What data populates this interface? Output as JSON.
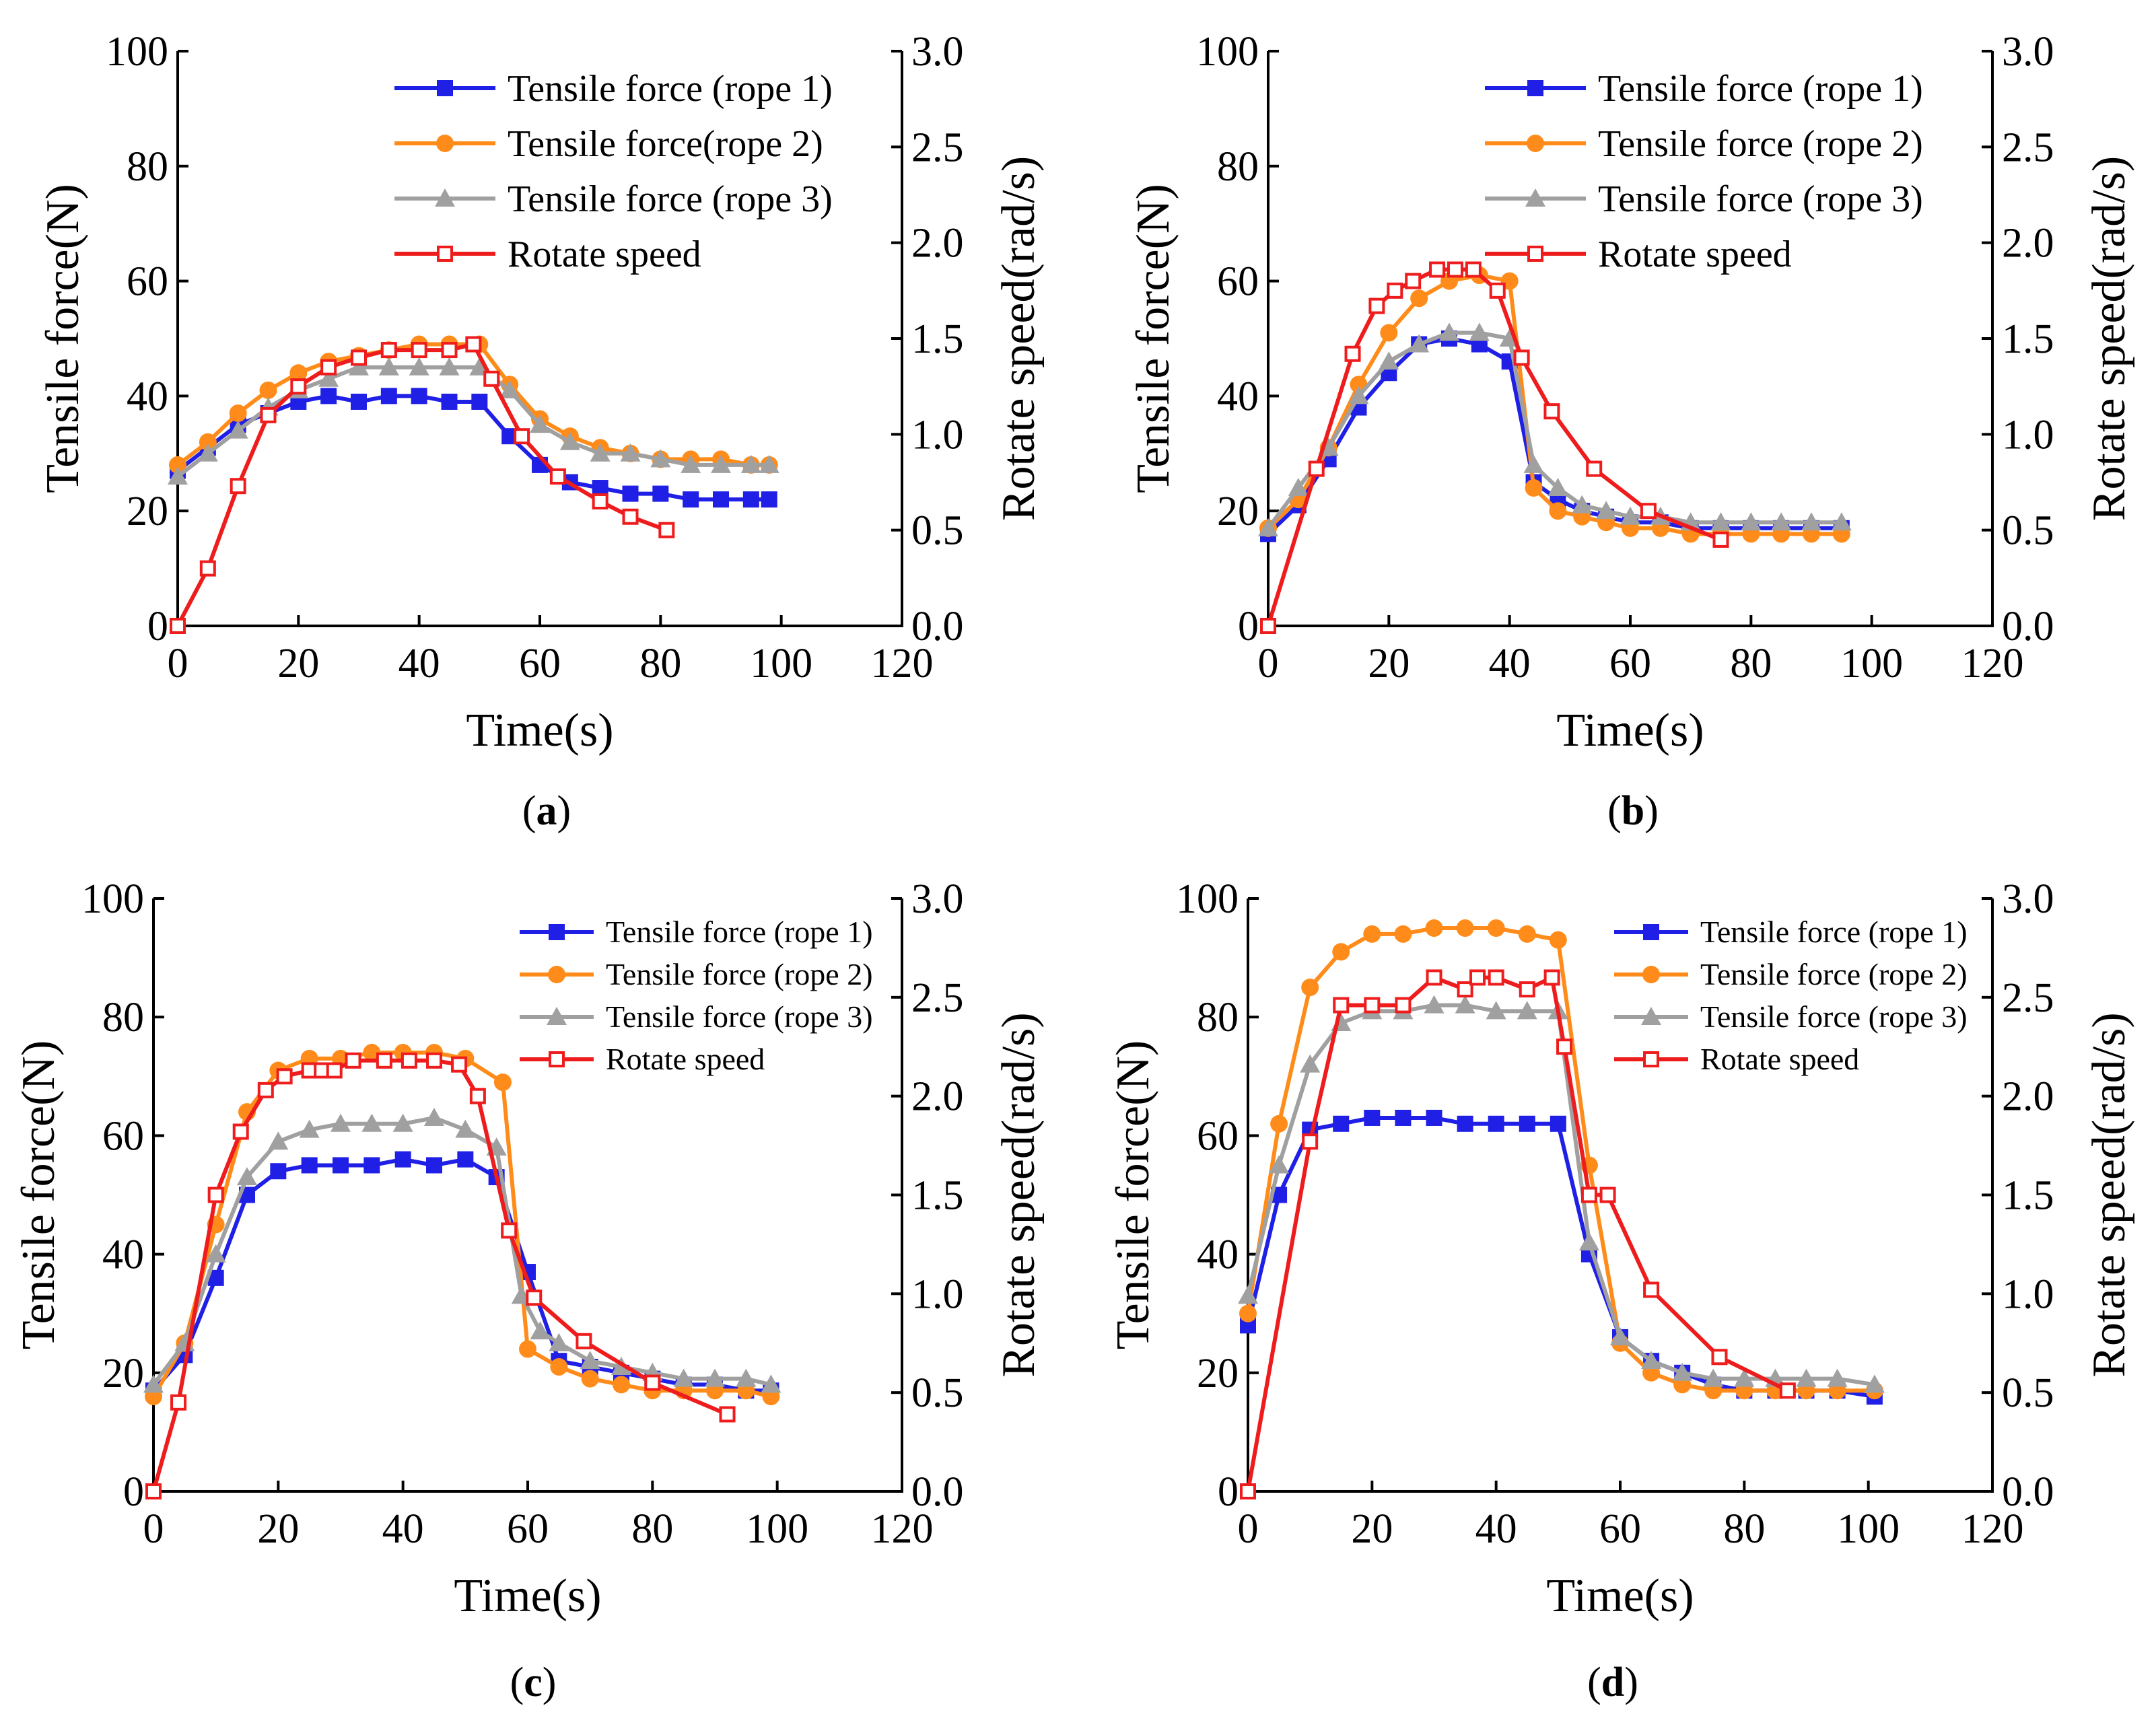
{
  "colors": {
    "rope1": "#1f1fe6",
    "rope2": "#ff8c1a",
    "rope3": "#a0a0a0",
    "speed": "#ee1c1c"
  },
  "chart_data": [
    {
      "type": "line",
      "panel_label": "(a)",
      "panel_letter": "a",
      "xlabel": "Time(s)",
      "ylabel": "Tensile force(N)",
      "y2label": "Rotate speed(rad/s)",
      "xlim": [
        0,
        120
      ],
      "ylim": [
        0,
        100
      ],
      "y2lim": [
        0.0,
        3.0
      ],
      "xticks": [
        "0",
        "20",
        "40",
        "60",
        "80",
        "100",
        "120"
      ],
      "yticks": [
        "0",
        "20",
        "40",
        "60",
        "80",
        "100"
      ],
      "y2ticks": [
        "0.0",
        "0.5",
        "1.0",
        "1.5",
        "2.0",
        "2.5",
        "3.0"
      ],
      "legend_style": "large",
      "legend_position": "top-right",
      "series": [
        {
          "name": "Tensile force (rope 1)",
          "marker": "square-filled",
          "color": "#1f1fe6",
          "axis": "left",
          "x": [
            0,
            5,
            10,
            15,
            20,
            25,
            30,
            35,
            40,
            45,
            50,
            55,
            60,
            65,
            70,
            75,
            80,
            85,
            90,
            95,
            98
          ],
          "y": [
            27,
            31,
            35,
            37,
            39,
            40,
            39,
            40,
            40,
            39,
            39,
            33,
            28,
            25,
            24,
            23,
            23,
            22,
            22,
            22,
            22
          ]
        },
        {
          "name": "Tensile force(rope 2)",
          "marker": "circle-filled",
          "color": "#ff8c1a",
          "axis": "left",
          "x": [
            0,
            5,
            10,
            15,
            20,
            25,
            30,
            35,
            40,
            45,
            50,
            55,
            60,
            65,
            70,
            75,
            80,
            85,
            90,
            95,
            98
          ],
          "y": [
            28,
            32,
            37,
            41,
            44,
            46,
            47,
            48,
            49,
            49,
            49,
            42,
            36,
            33,
            31,
            30,
            29,
            29,
            29,
            28,
            28
          ]
        },
        {
          "name": "Tensile force (rope 3)",
          "marker": "triangle-filled",
          "color": "#a0a0a0",
          "axis": "left",
          "x": [
            0,
            5,
            10,
            15,
            20,
            25,
            30,
            35,
            40,
            45,
            50,
            55,
            60,
            65,
            70,
            75,
            80,
            85,
            90,
            95,
            98
          ],
          "y": [
            26,
            30,
            34,
            38,
            41,
            43,
            45,
            45,
            45,
            45,
            45,
            41,
            35,
            32,
            30,
            30,
            29,
            28,
            28,
            28,
            28
          ]
        },
        {
          "name": "Rotate speed",
          "marker": "square-open",
          "color": "#ee1c1c",
          "axis": "right",
          "x": [
            0,
            5,
            10,
            15,
            20,
            25,
            30,
            35,
            40,
            45,
            49,
            52,
            57,
            63,
            70,
            75,
            81
          ],
          "y": [
            0.0,
            0.3,
            0.73,
            1.1,
            1.25,
            1.35,
            1.4,
            1.44,
            1.44,
            1.44,
            1.47,
            1.29,
            0.99,
            0.78,
            0.65,
            0.57,
            0.5
          ]
        }
      ]
    },
    {
      "type": "line",
      "panel_label": "(b)",
      "panel_letter": "b",
      "xlabel": "Time(s)",
      "ylabel": "Tensile force(N)",
      "y2label": "Rotate speed(rad/s)",
      "xlim": [
        0,
        120
      ],
      "ylim": [
        0,
        100
      ],
      "y2lim": [
        0.0,
        3.0
      ],
      "xticks": [
        "0",
        "20",
        "40",
        "60",
        "80",
        "100",
        "120"
      ],
      "yticks": [
        "0",
        "20",
        "40",
        "60",
        "80",
        "100"
      ],
      "y2ticks": [
        "0.0",
        "0.5",
        "1.0",
        "1.5",
        "2.0",
        "2.5",
        "3.0"
      ],
      "legend_style": "large",
      "legend_position": "top-right",
      "series": [
        {
          "name": "Tensile force (rope 1)",
          "marker": "square-filled",
          "color": "#1f1fe6",
          "axis": "left",
          "x": [
            0,
            5,
            10,
            15,
            20,
            25,
            30,
            35,
            40,
            44,
            48,
            52,
            56,
            60,
            65,
            70,
            75,
            80,
            85,
            90,
            95
          ],
          "y": [
            16,
            21,
            29,
            38,
            44,
            49,
            50,
            49,
            46,
            25,
            22,
            20,
            19,
            18,
            18,
            17,
            17,
            17,
            17,
            17,
            17
          ]
        },
        {
          "name": "Tensile force (rope 2)",
          "marker": "circle-filled",
          "color": "#ff8c1a",
          "axis": "left",
          "x": [
            0,
            5,
            10,
            15,
            20,
            25,
            30,
            35,
            40,
            44,
            48,
            52,
            56,
            60,
            65,
            70,
            75,
            80,
            85,
            90,
            95
          ],
          "y": [
            17,
            22,
            31,
            42,
            51,
            57,
            60,
            61,
            60,
            24,
            20,
            19,
            18,
            17,
            17,
            16,
            16,
            16,
            16,
            16,
            16
          ]
        },
        {
          "name": "Tensile force (rope 3)",
          "marker": "triangle-filled",
          "color": "#a0a0a0",
          "axis": "left",
          "x": [
            0,
            5,
            10,
            15,
            20,
            25,
            30,
            35,
            40,
            44,
            48,
            52,
            56,
            60,
            65,
            70,
            75,
            80,
            85,
            90,
            95
          ],
          "y": [
            17,
            24,
            31,
            40,
            46,
            49,
            51,
            51,
            50,
            28,
            24,
            21,
            20,
            19,
            19,
            18,
            18,
            18,
            18,
            18,
            18
          ]
        },
        {
          "name": "Rotate speed",
          "marker": "square-open",
          "color": "#ee1c1c",
          "axis": "right",
          "x": [
            0,
            8,
            14,
            18,
            21,
            24,
            28,
            31,
            34,
            38,
            42,
            47,
            54,
            63,
            75
          ],
          "y": [
            0.0,
            0.82,
            1.42,
            1.67,
            1.75,
            1.8,
            1.86,
            1.86,
            1.86,
            1.75,
            1.4,
            1.12,
            0.82,
            0.6,
            0.45
          ]
        }
      ]
    },
    {
      "type": "line",
      "panel_label": "(c)",
      "panel_letter": "c",
      "xlabel": "Time(s)",
      "ylabel": "Tensile force(N)",
      "y2label": "Rotate speed(rad/s)",
      "xlim": [
        0,
        120
      ],
      "ylim": [
        0,
        100
      ],
      "y2lim": [
        0.0,
        3.0
      ],
      "xticks": [
        "0",
        "20",
        "40",
        "60",
        "80",
        "100",
        "120"
      ],
      "yticks": [
        "0",
        "20",
        "40",
        "60",
        "80",
        "100"
      ],
      "y2ticks": [
        "0.0",
        "0.5",
        "1.0",
        "1.5",
        "2.0",
        "2.5",
        "3.0"
      ],
      "legend_style": "small",
      "legend_position": "top-right",
      "series": [
        {
          "name": "Tensile force (rope 1)",
          "marker": "square-filled",
          "color": "#1f1fe6",
          "axis": "left",
          "x": [
            0,
            5,
            10,
            15,
            20,
            25,
            30,
            35,
            40,
            45,
            50,
            55,
            60,
            65,
            70,
            75,
            80,
            85,
            90,
            95,
            99
          ],
          "y": [
            17,
            23,
            36,
            50,
            54,
            55,
            55,
            55,
            56,
            55,
            56,
            53,
            37,
            22,
            21,
            20,
            19,
            18,
            18,
            17,
            17
          ]
        },
        {
          "name": "Tensile force (rope 2)",
          "marker": "circle-filled",
          "color": "#ff8c1a",
          "axis": "left",
          "x": [
            0,
            5,
            10,
            15,
            20,
            25,
            30,
            35,
            40,
            45,
            50,
            56,
            60,
            65,
            70,
            75,
            80,
            85,
            90,
            95,
            99
          ],
          "y": [
            16,
            25,
            45,
            64,
            71,
            73,
            73,
            74,
            74,
            74,
            73,
            69,
            24,
            21,
            19,
            18,
            17,
            17,
            17,
            17,
            16
          ]
        },
        {
          "name": "Tensile force (rope 3)",
          "marker": "triangle-filled",
          "color": "#a0a0a0",
          "axis": "left",
          "x": [
            0,
            5,
            10,
            15,
            20,
            25,
            30,
            35,
            40,
            45,
            50,
            55,
            59,
            62,
            65,
            70,
            75,
            80,
            85,
            90,
            95,
            99
          ],
          "y": [
            18,
            25,
            40,
            53,
            59,
            61,
            62,
            62,
            62,
            63,
            61,
            58,
            33,
            27,
            25,
            22,
            21,
            20,
            19,
            19,
            19,
            18
          ]
        },
        {
          "name": "Rotate speed",
          "marker": "square-open",
          "color": "#ee1c1c",
          "axis": "right",
          "x": [
            0,
            4,
            10,
            14,
            18,
            21,
            25,
            27,
            29,
            32,
            37,
            41,
            45,
            49,
            52,
            57,
            61,
            69,
            80,
            92
          ],
          "y": [
            0.0,
            0.45,
            1.5,
            1.82,
            2.03,
            2.1,
            2.13,
            2.13,
            2.13,
            2.18,
            2.18,
            2.18,
            2.18,
            2.16,
            2.0,
            1.32,
            0.98,
            0.76,
            0.55,
            0.39
          ]
        }
      ]
    },
    {
      "type": "line",
      "panel_label": "(d)",
      "panel_letter": "d",
      "xlabel": "Time(s)",
      "ylabel": "Tensile force(N)",
      "y2label": "Rotate speed(rad/s)",
      "xlim": [
        0,
        120
      ],
      "ylim": [
        0,
        100
      ],
      "y2lim": [
        0.0,
        3.0
      ],
      "xticks": [
        "0",
        "20",
        "40",
        "60",
        "80",
        "100",
        "120"
      ],
      "yticks": [
        "0",
        "20",
        "40",
        "60",
        "80",
        "100"
      ],
      "y2ticks": [
        "0.0",
        "0.5",
        "1.0",
        "1.5",
        "2.0",
        "2.5",
        "3.0"
      ],
      "legend_style": "small",
      "legend_position": "top-right",
      "series": [
        {
          "name": "Tensile force (rope 1)",
          "marker": "square-filled",
          "color": "#1f1fe6",
          "axis": "left",
          "x": [
            0,
            5,
            10,
            15,
            20,
            25,
            30,
            35,
            40,
            45,
            50,
            55,
            60,
            65,
            70,
            75,
            80,
            85,
            90,
            95,
            101
          ],
          "y": [
            28,
            50,
            61,
            62,
            63,
            63,
            63,
            62,
            62,
            62,
            62,
            40,
            26,
            22,
            20,
            18,
            17,
            17,
            17,
            17,
            16
          ]
        },
        {
          "name": "Tensile force (rope 2)",
          "marker": "circle-filled",
          "color": "#ff8c1a",
          "axis": "left",
          "x": [
            0,
            5,
            10,
            15,
            20,
            25,
            30,
            35,
            40,
            45,
            50,
            55,
            60,
            65,
            70,
            75,
            80,
            85,
            90,
            95,
            101
          ],
          "y": [
            30,
            62,
            85,
            91,
            94,
            94,
            95,
            95,
            95,
            94,
            93,
            55,
            25,
            20,
            18,
            17,
            17,
            17,
            17,
            17,
            17
          ]
        },
        {
          "name": "Tensile force (rope 3)",
          "marker": "triangle-filled",
          "color": "#a0a0a0",
          "axis": "left",
          "x": [
            0,
            5,
            10,
            15,
            20,
            25,
            30,
            35,
            40,
            45,
            50,
            55,
            60,
            65,
            70,
            75,
            80,
            85,
            90,
            95,
            101
          ],
          "y": [
            33,
            55,
            72,
            79,
            81,
            81,
            82,
            82,
            81,
            81,
            81,
            42,
            26,
            22,
            20,
            19,
            19,
            19,
            19,
            19,
            18
          ]
        },
        {
          "name": "Rotate speed",
          "marker": "square-open",
          "color": "#ee1c1c",
          "axis": "right",
          "x": [
            0,
            10,
            15,
            20,
            25,
            30,
            35,
            37,
            40,
            45,
            49,
            51,
            55,
            58,
            65,
            76,
            87
          ],
          "y": [
            0.0,
            1.77,
            2.46,
            2.46,
            2.46,
            2.6,
            2.54,
            2.6,
            2.6,
            2.54,
            2.6,
            2.25,
            1.5,
            1.5,
            1.02,
            0.68,
            0.51
          ]
        }
      ]
    }
  ]
}
